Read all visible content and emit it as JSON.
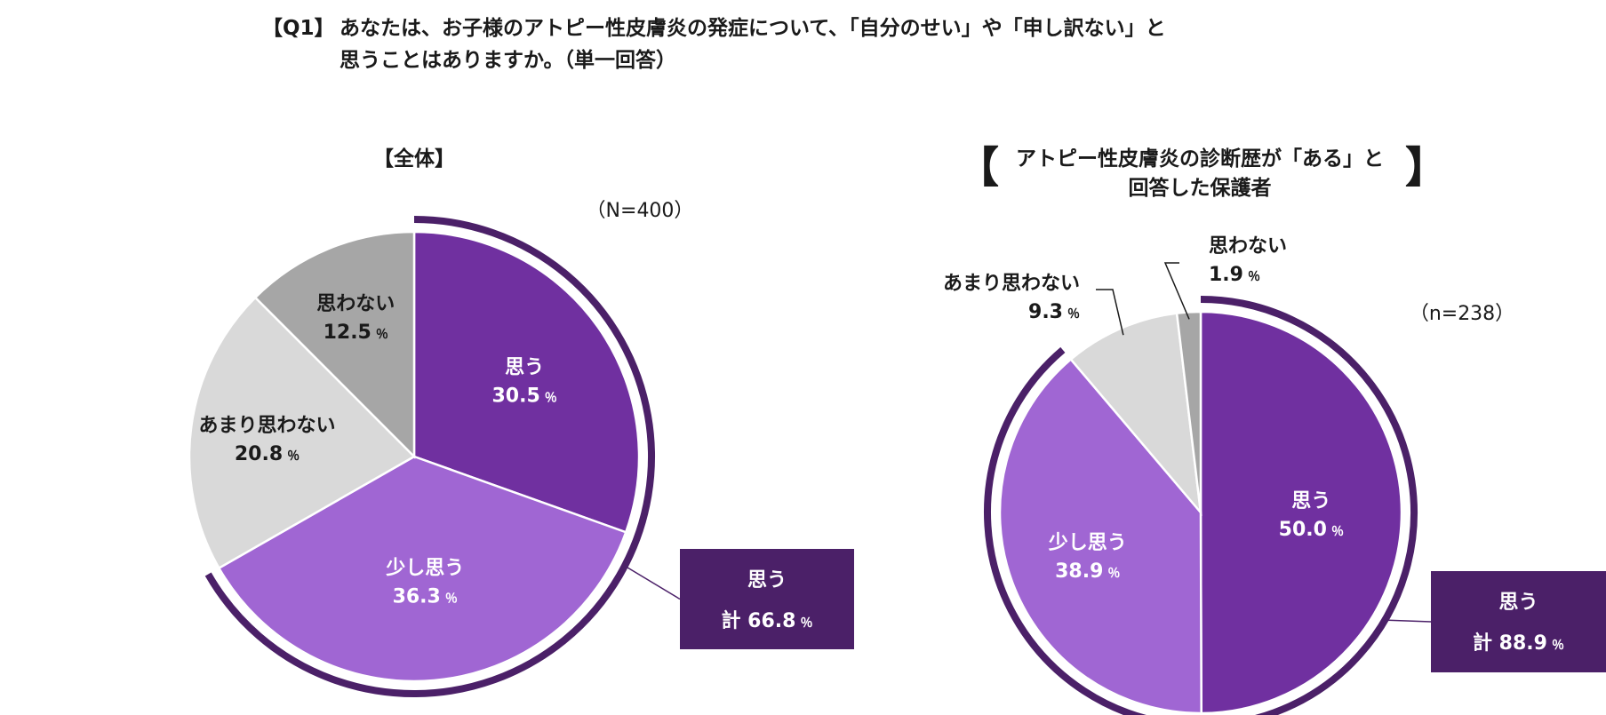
{
  "question": {
    "tag": "【Q1】",
    "line1": "あなたは、お子様のアトピー性皮膚炎の発症について、「自分のせい」や「申し訳ない」と",
    "line2": "思うことはありますか。（単一回答）"
  },
  "colors": {
    "omou": "#7030a0",
    "sukoshi": "#a066d3",
    "amari": "#d9d9d9",
    "omowanai": "#a6a6a6",
    "total_box": "#4b2068"
  },
  "chart_data": [
    {
      "type": "pie",
      "title": "【全体】",
      "n_label": "（N=400）",
      "categories": [
        "思う",
        "少し思う",
        "あまり思わない",
        "思わない"
      ],
      "values": [
        30.5,
        36.3,
        20.8,
        12.5
      ],
      "data_labels": [
        "30.5",
        "36.3",
        "20.8",
        "12.5"
      ],
      "unit": "％",
      "start": "12 o'clock, clockwise",
      "total_box": {
        "label": "思う",
        "prefix": "計",
        "value": "66.8",
        "unit": "％"
      }
    },
    {
      "type": "pie",
      "title": "アトピー性皮膚炎の診断歴が「ある」と",
      "title_line2": "回答した保護者",
      "title_bracket_left": "【",
      "title_bracket_right": "】",
      "n_label": "（n=238）",
      "categories": [
        "思う",
        "少し思う",
        "あまり思わない",
        "思わない"
      ],
      "values": [
        50.0,
        38.9,
        9.3,
        1.9
      ],
      "data_labels": [
        "50.0",
        "38.9",
        "9.3",
        "1.9"
      ],
      "unit": "％",
      "start": "12 o'clock, clockwise",
      "total_box": {
        "label": "思う",
        "prefix": "計",
        "value": "88.9",
        "unit": "％"
      }
    }
  ]
}
